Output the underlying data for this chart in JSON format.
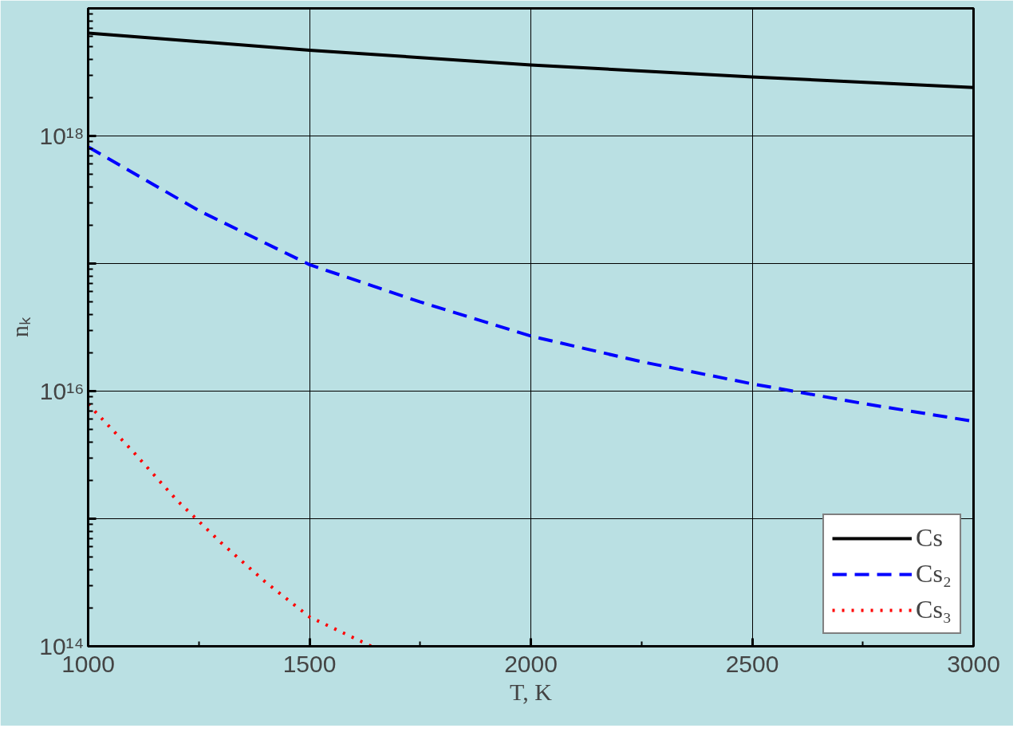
{
  "chart_data": {
    "type": "line",
    "xlabel": "T, K",
    "ylabel": "nₖ",
    "log": "y",
    "grid": true,
    "legend": "bottom right",
    "xlim": [
      1000,
      3000
    ],
    "xticks": [
      1000,
      1500,
      2000,
      2500,
      3000
    ],
    "ylim": [
      100000000000000.0,
      1e+19
    ],
    "yticks": [
      {
        "value": 100000000000000.0,
        "label": "10¹⁴"
      },
      {
        "value": 1000000000000000.0,
        "label": null
      },
      {
        "value": 1e+16,
        "label": "10¹⁶"
      },
      {
        "value": 1e+17,
        "label": null
      },
      {
        "value": 1e+18,
        "label": "10¹⁸"
      },
      {
        "value": 1e+19,
        "label": null
      }
    ],
    "series": [
      {
        "name": "Cs",
        "color": "#000000",
        "line_style": "solid",
        "x": [
          1000,
          1500,
          2000,
          2500,
          3000
        ],
        "values": [
          6.4e+18,
          4.7e+18,
          3.6e+18,
          2.9e+18,
          2.4e+18
        ]
      },
      {
        "name": "Cs₂",
        "color": "#0000ff",
        "line_style": "dashed",
        "x": [
          1000,
          1250,
          1500,
          1750,
          2000,
          2250,
          2500,
          2750,
          3000
        ],
        "values": [
          8.2e+17,
          2.6e+17,
          9.8e+16,
          5e+16,
          2.7e+16,
          1.7e+16,
          1.14e+16,
          8000000000000000.0,
          5800000000000000.0
        ]
      },
      {
        "name": "Cs₃",
        "color": "#ff0000",
        "line_style": "dotted",
        "x": [
          1000,
          1100,
          1200,
          1300,
          1400,
          1500,
          1640
        ],
        "values": [
          7900000000000000.0,
          3400000000000000.0,
          1400000000000000.0,
          650000000000000.0,
          320000000000000.0,
          170000000000000.0,
          100000000000000.0
        ]
      }
    ]
  }
}
